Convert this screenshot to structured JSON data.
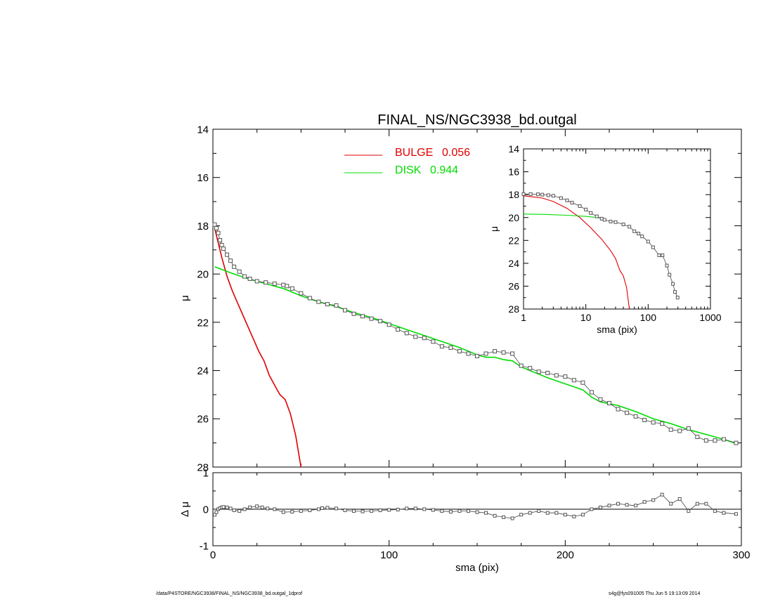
{
  "chart_data": [
    {
      "type": "line",
      "title": "FINAL_NS/NGC3938_bd.outgal",
      "xlabel": "",
      "ylabel": "μ",
      "xlim": [
        0,
        300
      ],
      "ylim": [
        28,
        14
      ],
      "y_inverted": true,
      "x_ticks": [
        0,
        100,
        200,
        300
      ],
      "y_ticks": [
        14,
        16,
        18,
        20,
        22,
        24,
        26,
        28
      ],
      "legend_position": "top-center",
      "series": [
        {
          "name": "BULGE",
          "fraction": "0.056",
          "color": "#e00000",
          "x": [
            1,
            3,
            5,
            8,
            11,
            14,
            17,
            20,
            23,
            26,
            29,
            32,
            35,
            38,
            41,
            44,
            47,
            50
          ],
          "y": [
            18.1,
            18.7,
            19.3,
            20.1,
            20.7,
            21.2,
            21.7,
            22.2,
            22.7,
            23.2,
            23.6,
            24.2,
            24.6,
            25.0,
            25.2,
            25.8,
            26.7,
            28.0
          ]
        },
        {
          "name": "DISK",
          "fraction": "0.944",
          "color": "#00dd00",
          "x": [
            1,
            10,
            20,
            30,
            40,
            50,
            60,
            70,
            80,
            90,
            100,
            110,
            120,
            130,
            140,
            150,
            155,
            160,
            165,
            170,
            175,
            180,
            190,
            200,
            210,
            215,
            220,
            230,
            240,
            250,
            260,
            270,
            280,
            290,
            298
          ],
          "y": [
            19.7,
            19.95,
            20.2,
            20.4,
            20.6,
            20.9,
            21.15,
            21.35,
            21.6,
            21.8,
            22.05,
            22.3,
            22.55,
            22.8,
            23.05,
            23.35,
            23.45,
            23.45,
            23.55,
            23.6,
            23.85,
            24.0,
            24.3,
            24.55,
            24.8,
            25.1,
            25.3,
            25.45,
            25.7,
            26.0,
            26.2,
            26.45,
            26.65,
            26.85,
            27.05
          ]
        },
        {
          "name": "data",
          "color": "#555555",
          "marker": "square",
          "x": [
            1,
            2,
            3,
            4,
            5,
            6,
            8,
            10,
            12,
            15,
            18,
            21,
            25,
            30,
            35,
            40,
            42,
            45,
            50,
            55,
            60,
            65,
            70,
            75,
            80,
            85,
            90,
            95,
            100,
            105,
            110,
            115,
            120,
            125,
            130,
            135,
            140,
            145,
            150,
            155,
            160,
            165,
            170,
            175,
            180,
            185,
            190,
            195,
            200,
            205,
            210,
            215,
            220,
            225,
            230,
            235,
            240,
            245,
            250,
            255,
            260,
            265,
            270,
            275,
            280,
            285,
            290,
            297
          ],
          "y": [
            17.95,
            18.1,
            18.3,
            18.6,
            18.8,
            18.95,
            19.2,
            19.45,
            19.7,
            19.9,
            20.1,
            20.2,
            20.3,
            20.35,
            20.4,
            20.45,
            20.5,
            20.6,
            20.8,
            21.0,
            21.15,
            21.25,
            21.3,
            21.5,
            21.65,
            21.75,
            21.85,
            21.95,
            22.1,
            22.3,
            22.45,
            22.6,
            22.65,
            22.8,
            23.0,
            23.05,
            23.2,
            23.3,
            23.4,
            23.3,
            23.2,
            23.25,
            23.3,
            23.8,
            23.9,
            24.05,
            24.1,
            24.2,
            24.25,
            24.4,
            24.5,
            24.9,
            25.2,
            25.35,
            25.6,
            25.75,
            25.9,
            26.05,
            26.15,
            26.2,
            26.45,
            26.5,
            26.4,
            26.75,
            26.9,
            26.9,
            26.85,
            27.0
          ]
        }
      ]
    },
    {
      "type": "scatter",
      "title": "",
      "xlabel": "sma (pix)",
      "ylabel": "Δ μ",
      "xlim": [
        0,
        300
      ],
      "ylim": [
        -1,
        1
      ],
      "x_ticks": [
        0,
        100,
        200,
        300
      ],
      "y_ticks": [
        -1,
        0,
        1
      ],
      "zero_line": true,
      "series": [
        {
          "name": "residual",
          "color": "#555555",
          "marker": "square",
          "x": [
            1,
            2,
            3,
            4,
            5,
            6,
            8,
            10,
            12,
            15,
            18,
            21,
            25,
            28,
            31,
            35,
            40,
            45,
            50,
            55,
            60,
            62,
            65,
            70,
            75,
            80,
            85,
            90,
            95,
            100,
            105,
            110,
            115,
            120,
            125,
            130,
            135,
            140,
            145,
            150,
            155,
            160,
            165,
            170,
            175,
            180,
            185,
            190,
            195,
            200,
            205,
            210,
            215,
            220,
            225,
            230,
            235,
            240,
            245,
            250,
            255,
            260,
            265,
            270,
            275,
            280,
            285,
            290,
            297
          ],
          "y": [
            -0.15,
            -0.08,
            0.0,
            0.03,
            0.05,
            0.06,
            0.05,
            0.02,
            -0.03,
            -0.05,
            0.0,
            0.05,
            0.08,
            0.05,
            0.02,
            0.0,
            -0.08,
            -0.07,
            -0.05,
            -0.03,
            0.0,
            0.03,
            0.04,
            0.02,
            -0.03,
            -0.05,
            -0.06,
            -0.05,
            -0.03,
            -0.02,
            -0.01,
            0.02,
            0.02,
            0.0,
            -0.02,
            -0.05,
            -0.07,
            -0.05,
            -0.05,
            -0.08,
            -0.1,
            -0.18,
            -0.22,
            -0.25,
            -0.15,
            -0.1,
            -0.05,
            -0.1,
            -0.1,
            -0.15,
            -0.2,
            -0.15,
            0.0,
            0.05,
            0.1,
            0.15,
            0.12,
            0.1,
            0.2,
            0.25,
            0.4,
            0.15,
            0.28,
            -0.05,
            0.15,
            0.15,
            -0.05,
            -0.1,
            -0.13
          ]
        }
      ]
    },
    {
      "type": "scatter",
      "title": "",
      "xlabel": "sma (pix)",
      "ylabel": "μ",
      "x_scale": "log",
      "xlim": [
        1,
        1000
      ],
      "ylim": [
        28,
        14
      ],
      "y_inverted": true,
      "x_ticks": [
        1,
        10,
        100,
        1000
      ],
      "y_ticks": [
        14,
        16,
        18,
        20,
        22,
        24,
        26,
        28
      ],
      "series": [
        {
          "name": "BULGE",
          "color": "#e00000",
          "x": [
            1,
            2,
            3,
            5,
            8,
            12,
            18,
            25,
            30,
            35,
            40,
            45,
            50
          ],
          "y": [
            18.1,
            18.3,
            18.6,
            19.2,
            20.0,
            20.9,
            21.9,
            22.9,
            23.6,
            24.6,
            25.1,
            26.1,
            28.0
          ]
        },
        {
          "name": "DISK",
          "color": "#00dd00",
          "x": [
            1,
            2,
            5,
            10,
            15,
            20
          ],
          "y": [
            19.7,
            19.72,
            19.8,
            19.9,
            20.0,
            20.1
          ]
        },
        {
          "name": "data",
          "color": "#555555",
          "marker": "square",
          "x": [
            1,
            1.3,
            1.7,
            2,
            2.5,
            3,
            4,
            5,
            6,
            8,
            10,
            12,
            15,
            18,
            20,
            25,
            30,
            40,
            50,
            60,
            70,
            80,
            100,
            120,
            150,
            170,
            200,
            220,
            250,
            270,
            297
          ],
          "y": [
            17.95,
            17.95,
            17.97,
            18.0,
            18.05,
            18.1,
            18.3,
            18.5,
            18.7,
            19.0,
            19.3,
            19.6,
            19.9,
            20.1,
            20.2,
            20.35,
            20.4,
            20.6,
            20.8,
            21.2,
            21.4,
            21.65,
            22.1,
            22.6,
            23.3,
            23.3,
            24.2,
            25.0,
            25.8,
            26.5,
            27.0
          ]
        }
      ]
    }
  ],
  "footer": {
    "left": "/data/P4STORE/NGC3938/FINAL_NS/NGC3938_bd.outgal_1dprof",
    "right": "s4g@fys091005  Thu Jun  5 19:13:09 2014"
  }
}
